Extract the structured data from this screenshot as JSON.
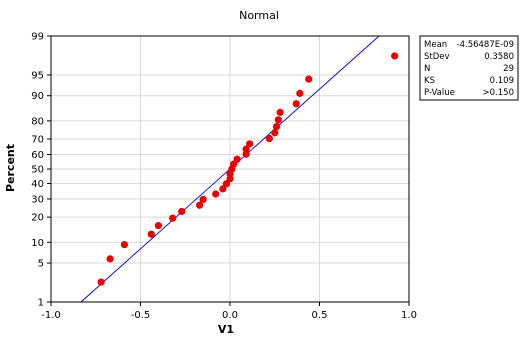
{
  "chart_data": {
    "type": "scatter",
    "title": "Normal",
    "xlabel": "V1",
    "ylabel": "Percent",
    "xlim": [
      -1.0,
      1.0
    ],
    "x_ticks": [
      "-1.0",
      "-0.5",
      "0.0",
      "0.5",
      "1.0"
    ],
    "x_tick_values": [
      -1.0,
      -0.5,
      0.0,
      0.5,
      1.0
    ],
    "y_ticks": [
      "1",
      "5",
      "10",
      "20",
      "30",
      "40",
      "50",
      "60",
      "70",
      "80",
      "90",
      "95",
      "99"
    ],
    "y_tick_values": [
      1,
      5,
      10,
      20,
      30,
      40,
      50,
      60,
      70,
      80,
      90,
      95,
      99
    ],
    "y_scale": "normal-probability",
    "grid": true,
    "fit_line": {
      "color": "#0000cc",
      "mean": 0,
      "stdev": 0.358
    },
    "point_color": "#e60000",
    "points": [
      {
        "x": -0.72,
        "y": 2.4
      },
      {
        "x": -0.67,
        "y": 5.8
      },
      {
        "x": -0.59,
        "y": 9.3
      },
      {
        "x": -0.44,
        "y": 12.7
      },
      {
        "x": -0.4,
        "y": 16.1
      },
      {
        "x": -0.32,
        "y": 19.5
      },
      {
        "x": -0.27,
        "y": 22.9
      },
      {
        "x": -0.17,
        "y": 26.3
      },
      {
        "x": -0.15,
        "y": 29.7
      },
      {
        "x": -0.08,
        "y": 33.1
      },
      {
        "x": -0.04,
        "y": 36.4
      },
      {
        "x": -0.02,
        "y": 39.8
      },
      {
        "x": 0.0,
        "y": 43.2
      },
      {
        "x": 0.0,
        "y": 46.6
      },
      {
        "x": 0.01,
        "y": 50.0
      },
      {
        "x": 0.02,
        "y": 53.4
      },
      {
        "x": 0.04,
        "y": 56.8
      },
      {
        "x": 0.09,
        "y": 60.2
      },
      {
        "x": 0.09,
        "y": 63.6
      },
      {
        "x": 0.11,
        "y": 67.0
      },
      {
        "x": 0.22,
        "y": 70.3
      },
      {
        "x": 0.25,
        "y": 73.7
      },
      {
        "x": 0.26,
        "y": 77.1
      },
      {
        "x": 0.27,
        "y": 80.5
      },
      {
        "x": 0.28,
        "y": 83.9
      },
      {
        "x": 0.37,
        "y": 87.3
      },
      {
        "x": 0.39,
        "y": 90.7
      },
      {
        "x": 0.44,
        "y": 94.2
      },
      {
        "x": 0.92,
        "y": 97.6
      }
    ]
  },
  "stats": [
    {
      "label": "Mean",
      "value": "-4.56487E-09"
    },
    {
      "label": "StDev",
      "value": "0.3580"
    },
    {
      "label": "N",
      "value": "29"
    },
    {
      "label": "KS",
      "value": "0.109"
    },
    {
      "label": "P-Value",
      "value": ">0.150"
    }
  ]
}
